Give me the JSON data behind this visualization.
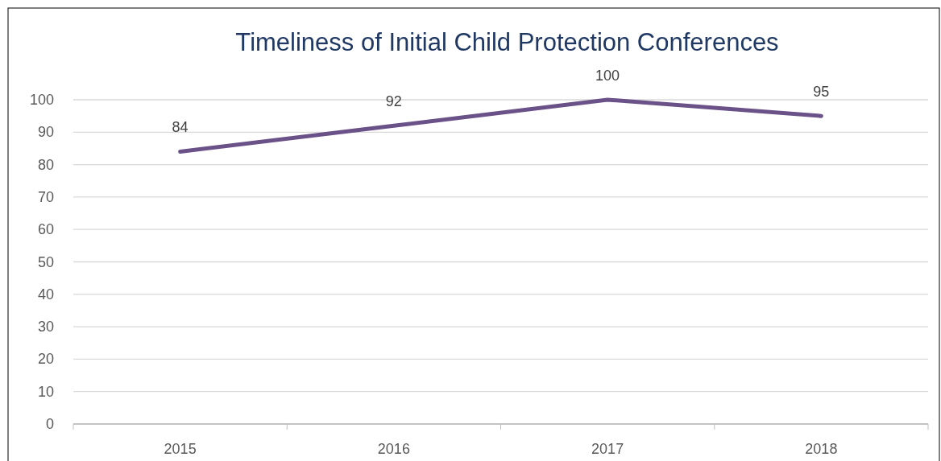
{
  "chart_data": {
    "type": "line",
    "title": "Timeliness of Initial Child Protection Conferences",
    "categories": [
      "2015",
      "2016",
      "2017",
      "2018"
    ],
    "series": [
      {
        "color": "#6a5188",
        "values": [
          84,
          92,
          100,
          95
        ]
      }
    ],
    "ylim": [
      0,
      100
    ],
    "yticks": [
      0,
      10,
      20,
      30,
      40,
      50,
      60,
      70,
      80,
      90,
      100
    ],
    "grid": "y",
    "data_labels": true
  }
}
